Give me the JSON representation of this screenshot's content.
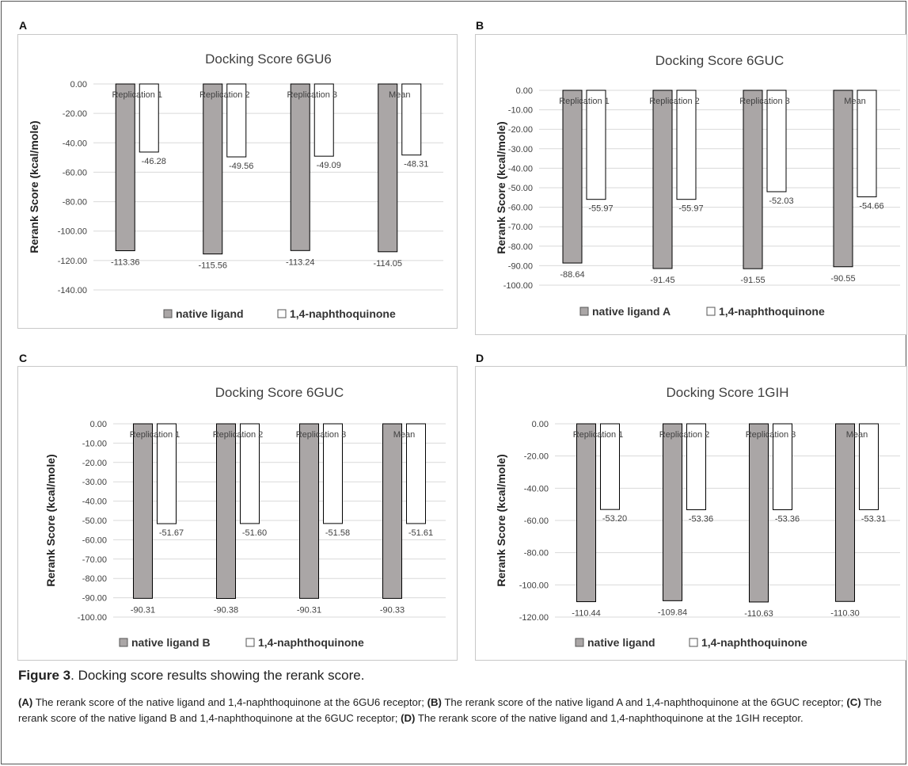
{
  "colors": {
    "native": "#aaa6a6",
    "naphtho": "#ffffff",
    "stroke": "#000000",
    "grid": "#d9d9d9"
  },
  "chart_data": [
    {
      "panel": "A",
      "type": "bar",
      "title": "Docking Score 6GU6",
      "ylabel": "Rerank Score (kcal/mole)",
      "xlabel": "",
      "categories": [
        "Replication 1",
        "Replication 2",
        "Replication 3",
        "Mean"
      ],
      "yticks": [
        "0.00",
        "-20.00",
        "-40.00",
        "-60.00",
        "-80.00",
        "-100.00",
        "-120.00",
        "-140.00"
      ],
      "ylim": [
        -140,
        0
      ],
      "grid": true,
      "legend_position": "bottom",
      "series": [
        {
          "name": "native ligand",
          "values": [
            -113.36,
            -115.56,
            -113.24,
            -114.05
          ],
          "labels": [
            "-113.36",
            "-115.56",
            "-113.24",
            "-114.05"
          ]
        },
        {
          "name": "1,4-naphthoquinone",
          "values": [
            -46.28,
            -49.56,
            -49.09,
            -48.31
          ],
          "labels": [
            "-46.28",
            "-49.56",
            "-49.09",
            "-48.31"
          ]
        }
      ]
    },
    {
      "panel": "B",
      "type": "bar",
      "title": "Docking Score 6GUC",
      "ylabel": "Rerank Score (kcal/mole)",
      "xlabel": "",
      "categories": [
        "Replication 1",
        "Replication 2",
        "Replication 3",
        "Mean"
      ],
      "yticks": [
        "0.00",
        "-10.00",
        "-20.00",
        "-30.00",
        "-40.00",
        "-50.00",
        "-60.00",
        "-70.00",
        "-80.00",
        "-90.00",
        "-100.00"
      ],
      "ylim": [
        -100,
        0
      ],
      "grid": true,
      "legend_position": "bottom",
      "series": [
        {
          "name": "native ligand A",
          "values": [
            -88.64,
            -91.45,
            -91.55,
            -90.55
          ],
          "labels": [
            "-88.64",
            "-91.45",
            "-91.55",
            "-90.55"
          ]
        },
        {
          "name": "1,4-naphthoquinone",
          "values": [
            -55.97,
            -55.97,
            -52.03,
            -54.66
          ],
          "labels": [
            "-55.97",
            "-55.97",
            "-52.03",
            "-54.66"
          ]
        }
      ]
    },
    {
      "panel": "C",
      "type": "bar",
      "title": "Docking Score 6GUC",
      "ylabel": "Rerank Score (kcal/mole)",
      "xlabel": "",
      "categories": [
        "Replication 1",
        "Replication 2",
        "Replication 3",
        "Mean"
      ],
      "yticks": [
        "0.00",
        "-10.00",
        "-20.00",
        "-30.00",
        "-40.00",
        "-50.00",
        "-60.00",
        "-70.00",
        "-80.00",
        "-90.00",
        "-100.00"
      ],
      "ylim": [
        -100,
        0
      ],
      "grid": true,
      "legend_position": "bottom",
      "series": [
        {
          "name": "native ligand B",
          "values": [
            -90.31,
            -90.38,
            -90.31,
            -90.33
          ],
          "labels": [
            "-90.31",
            "-90.38",
            "-90.31",
            "-90.33"
          ]
        },
        {
          "name": "1,4-naphthoquinone",
          "values": [
            -51.67,
            -51.6,
            -51.58,
            -51.61
          ],
          "labels": [
            "-51.67",
            "-51.60",
            "-51.58",
            "-51.61"
          ]
        }
      ]
    },
    {
      "panel": "D",
      "type": "bar",
      "title": "Docking Score 1GIH",
      "ylabel": "Rerank Score (kcal/mole)",
      "xlabel": "",
      "categories": [
        "Replication 1",
        "Replication 2",
        "Replication 3",
        "Mean"
      ],
      "yticks": [
        "0.00",
        "-20.00",
        "-40.00",
        "-60.00",
        "-80.00",
        "-100.00",
        "-120.00"
      ],
      "ylim": [
        -120,
        0
      ],
      "grid": true,
      "legend_position": "bottom",
      "series": [
        {
          "name": "native ligand",
          "values": [
            -110.44,
            -109.84,
            -110.63,
            -110.3
          ],
          "labels": [
            "-110.44",
            "-109.84",
            "-110.63",
            "-110.30"
          ]
        },
        {
          "name": "1,4-naphthoquinone",
          "values": [
            -53.2,
            -53.36,
            -53.36,
            -53.31
          ],
          "labels": [
            "-53.20",
            "-53.36",
            "-53.36",
            "-53.31"
          ]
        }
      ]
    }
  ],
  "caption": {
    "label": "Figure 3",
    "text": ". Docking score results showing the rerank score."
  },
  "legend_text": {
    "a_label": "(A)",
    "a_text": " The rerank score of the native ligand and 1,4-naphthoquinone at the 6GU6 receptor; ",
    "b_label": "(B)",
    "b_text": " The rerank score of the native ligand A and 1,4-naphthoquinone at the 6GUC receptor; ",
    "c_label": "(C)",
    "c_text": " The rerank score of the native ligand B and 1,4-naphthoquinone at the 6GUC receptor; ",
    "d_label": "(D)",
    "d_text": " The rerank score of the native ligand and 1,4-naphthoquinone at the 1GIH receptor."
  }
}
